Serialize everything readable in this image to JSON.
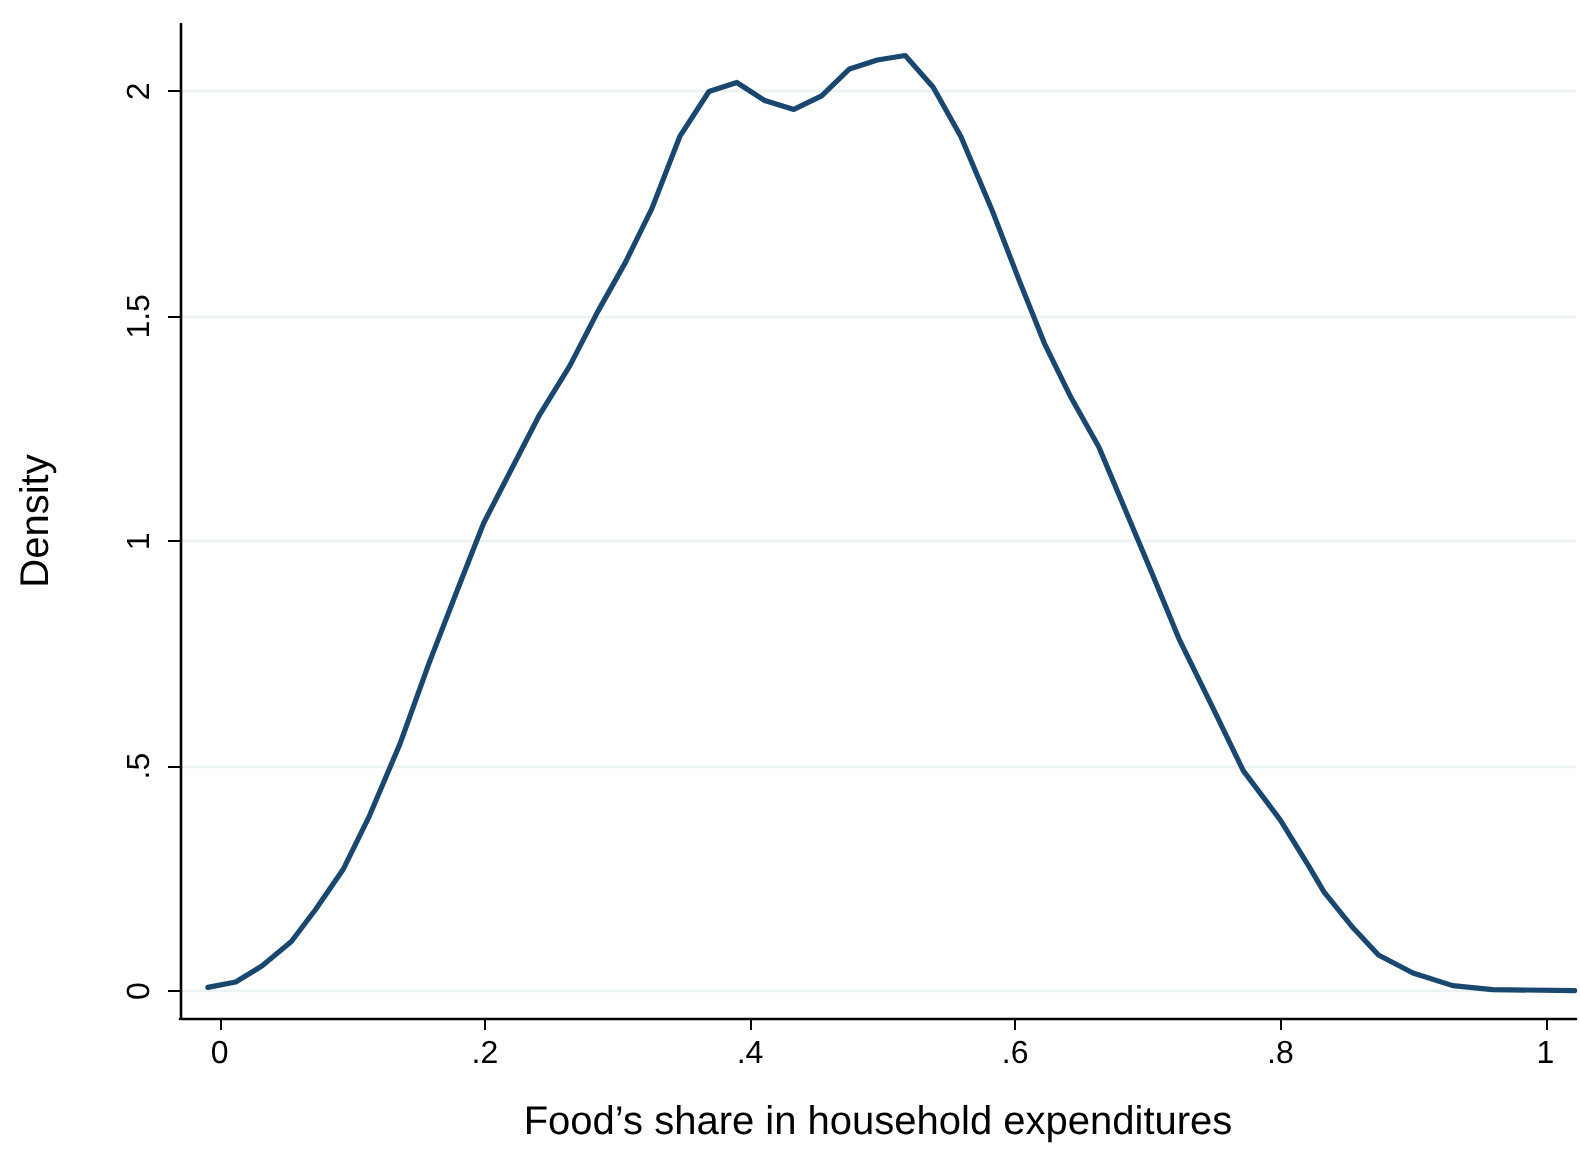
{
  "chart_data": {
    "type": "line",
    "xlabel": "Food’s share in household expenditures",
    "ylabel": "Density",
    "x": [
      -0.009,
      0.012,
      0.032,
      0.054,
      0.072,
      0.093,
      0.113,
      0.136,
      0.158,
      0.179,
      0.199,
      0.22,
      0.241,
      0.264,
      0.285,
      0.306,
      0.326,
      0.347,
      0.369,
      0.39,
      0.411,
      0.433,
      0.454,
      0.475,
      0.496,
      0.517,
      0.538,
      0.559,
      0.582,
      0.603,
      0.622,
      0.642,
      0.663,
      0.683,
      0.703,
      0.724,
      0.749,
      0.772,
      0.8,
      0.821,
      0.833,
      0.855,
      0.874,
      0.9,
      0.93,
      0.96,
      1.022
    ],
    "series": [
      {
        "color": "#1a476f",
        "values": [
          0.008,
          0.02,
          0.056,
          0.11,
          0.18,
          0.27,
          0.39,
          0.55,
          0.73,
          0.89,
          1.04,
          1.16,
          1.28,
          1.39,
          1.51,
          1.62,
          1.74,
          1.9,
          2.0,
          2.02,
          1.98,
          1.96,
          1.99,
          2.05,
          2.07,
          2.08,
          2.01,
          1.9,
          1.74,
          1.58,
          1.44,
          1.32,
          1.21,
          1.07,
          0.93,
          0.78,
          0.63,
          0.49,
          0.38,
          0.28,
          0.22,
          0.14,
          0.08,
          0.04,
          0.012,
          0.003,
          0.001
        ]
      }
    ],
    "xlim": [
      -0.03,
      1.023
    ],
    "xticks": [
      0,
      {
        "value": 0.2,
        "label": ".2"
      },
      {
        "value": 0.4,
        "label": ".4"
      },
      {
        "value": 0.6,
        "label": ".6"
      },
      {
        "value": 0.8,
        "label": ".8"
      },
      1
    ],
    "ylim": [
      -0.06,
      2.15
    ],
    "yticks": [
      0,
      {
        "value": 0.5,
        "label": ".5"
      },
      1,
      1.5,
      2
    ],
    "grid": "y",
    "marker": "none",
    "line_style": "solid"
  }
}
